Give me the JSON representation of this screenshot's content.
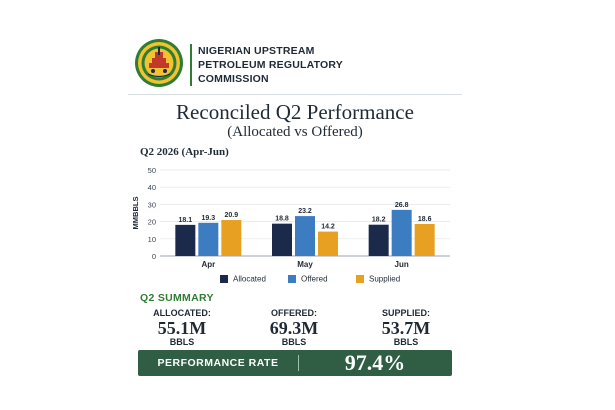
{
  "header": {
    "org_line1": "NIGERIAN UPSTREAM",
    "org_line2": "PETROLEUM REGULATORY",
    "org_line3": "COMMISSION",
    "logo_icon": "nuprc-seal-icon",
    "logo_text": "NIGERIAN UPSTREAM PETROLEUM REGULATORY COMMISSION"
  },
  "colors": {
    "allocated": "#1b2a4a",
    "offered": "#3c7cc0",
    "supplied": "#e8a023",
    "accent_green": "#2e7d32",
    "banner": "#2f5e44"
  },
  "chart_data": {
    "type": "bar",
    "title": "Reconciled Q2 Performance",
    "subtitle": "(Allocated vs Offered)",
    "period": "Q2 2026 (Apr-Jun)",
    "categories": [
      "Apr",
      "May",
      "Jun"
    ],
    "series": [
      {
        "name": "Allocated",
        "values": [
          18.1,
          18.8,
          18.2
        ]
      },
      {
        "name": "Offered",
        "values": [
          19.3,
          23.2,
          26.8
        ]
      },
      {
        "name": "Supplied",
        "values": [
          20.9,
          14.2,
          18.6
        ]
      }
    ],
    "ylabel": "MMBBLS",
    "ylim": [
      0,
      50
    ],
    "yticks": [
      0,
      10,
      20,
      30,
      40,
      50
    ],
    "grid": true,
    "legend": "bottom"
  },
  "summary": {
    "title": "Q2 SUMMARY",
    "items": [
      {
        "label": "ALLOCATED:",
        "value": "55.1M",
        "unit": "BBLS"
      },
      {
        "label": "OFFERED:",
        "value": "69.3M",
        "unit": "BBLS"
      },
      {
        "label": "SUPPLIED:",
        "value": "53.7M",
        "unit": "BBLS"
      }
    ],
    "performance_label": "PERFORMANCE RATE",
    "performance_value": "97.4%"
  }
}
